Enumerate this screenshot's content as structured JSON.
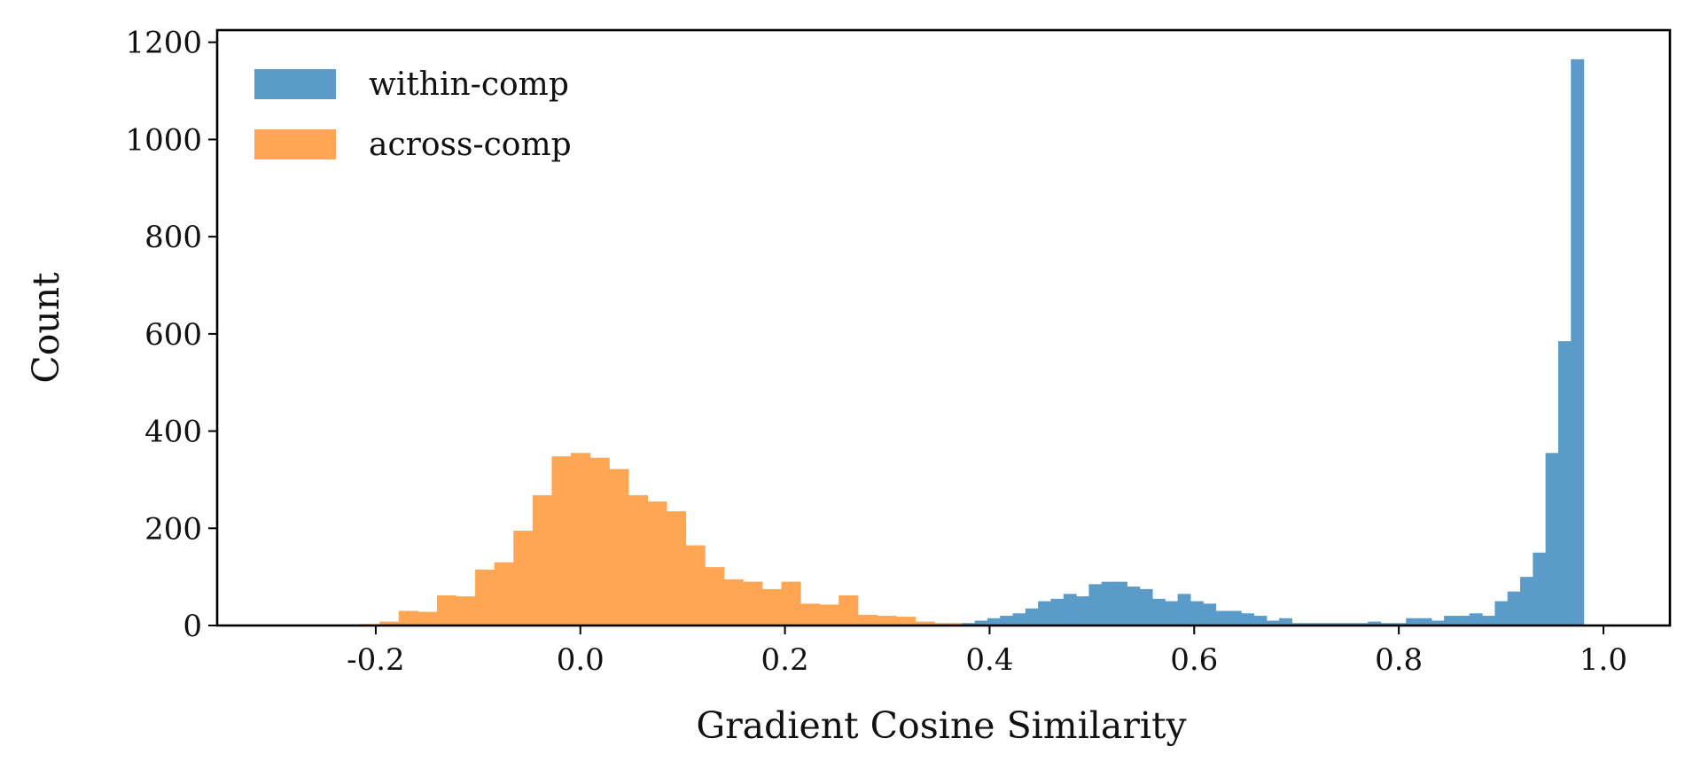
{
  "chart_data": {
    "type": "bar",
    "xlabel": "Gradient Cosine Similarity",
    "ylabel": "Count",
    "xlim": [
      -0.355,
      1.065
    ],
    "ylim": [
      0,
      1225
    ],
    "xticks": [
      {
        "value": -0.2,
        "label": "-0.2"
      },
      {
        "value": 0.0,
        "label": "0.0"
      },
      {
        "value": 0.2,
        "label": "0.2"
      },
      {
        "value": 0.4,
        "label": "0.4"
      },
      {
        "value": 0.6,
        "label": "0.6"
      },
      {
        "value": 0.8,
        "label": "0.8"
      },
      {
        "value": 1.0,
        "label": "1.0"
      }
    ],
    "yticks": [
      {
        "value": 0,
        "label": "0"
      },
      {
        "value": 200,
        "label": "200"
      },
      {
        "value": 400,
        "label": "400"
      },
      {
        "value": 600,
        "label": "600"
      },
      {
        "value": 800,
        "label": "800"
      },
      {
        "value": 1000,
        "label": "1000"
      },
      {
        "value": 1200,
        "label": "1200"
      }
    ],
    "grid": false,
    "legend_position": "top-left",
    "series": [
      {
        "name": "within-comp",
        "color": "#5b9bca",
        "bin_start": 0.373,
        "bin_width": 0.0124,
        "values": [
          5,
          10,
          15,
          20,
          25,
          35,
          50,
          55,
          65,
          60,
          85,
          90,
          90,
          80,
          75,
          55,
          50,
          65,
          50,
          45,
          30,
          30,
          25,
          20,
          10,
          15,
          5,
          5,
          5,
          5,
          5,
          5,
          8,
          5,
          5,
          15,
          15,
          10,
          20,
          20,
          25,
          20,
          50,
          70,
          100,
          150,
          355,
          585,
          1165
        ]
      },
      {
        "name": "across-comp",
        "color": "#fea654",
        "bin_start": -0.215,
        "bin_width": 0.0187,
        "values": [
          3,
          8,
          30,
          28,
          62,
          60,
          115,
          130,
          195,
          268,
          348,
          355,
          345,
          322,
          268,
          255,
          235,
          165,
          120,
          95,
          90,
          75,
          90,
          45,
          43,
          62,
          22,
          20,
          18,
          8,
          5,
          5
        ]
      }
    ]
  }
}
